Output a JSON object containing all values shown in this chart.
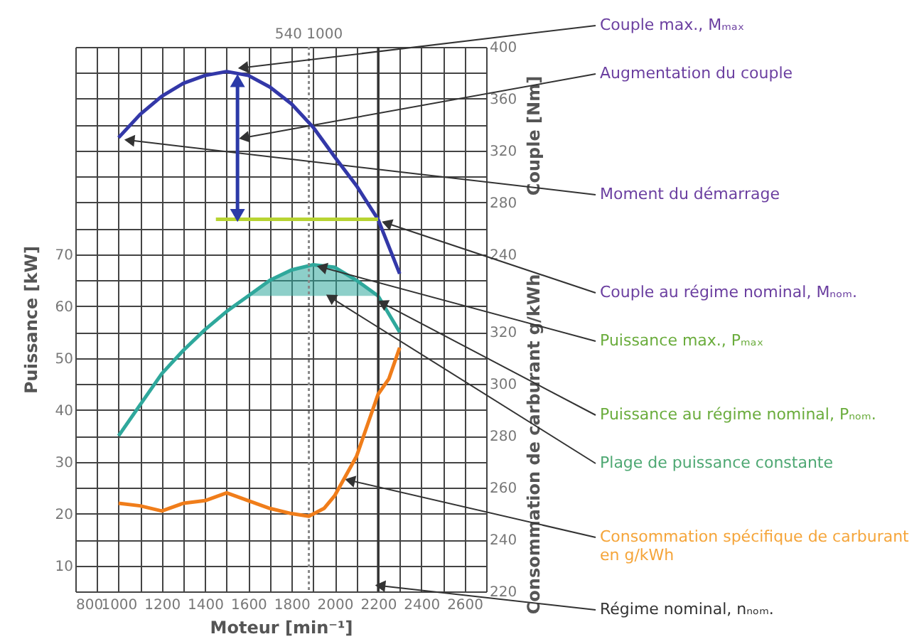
{
  "chart_data": {
    "type": "line",
    "xlabel": "Moteur [min⁻¹]",
    "ylabel": "Puissance [kW]",
    "y2label": "Couple [Nm]",
    "y3label": "Consommation de carburant g/kWh",
    "xlim": [
      800,
      2700
    ],
    "xticks": [
      800,
      {
        "value": 900,
        "label": null
      },
      1000,
      {
        "value": 1100,
        "label": null
      },
      1200,
      {
        "value": 1300,
        "label": null
      },
      1400,
      {
        "value": 1500,
        "label": null
      },
      1600,
      {
        "value": 1700,
        "label": null
      },
      1800,
      {
        "value": 1900,
        "label": null
      },
      2000,
      {
        "value": 2100,
        "label": null
      },
      2200,
      {
        "value": 2300,
        "label": null
      },
      2400,
      {
        "value": 2500,
        "label": null
      },
      2600,
      {
        "value": 2700,
        "label": null
      }
    ],
    "ylim": [
      5,
      110
    ],
    "yticks": [
      {
        "value": 5,
        "label": null
      },
      10,
      {
        "value": 15,
        "label": null
      },
      20,
      {
        "value": 25,
        "label": null
      },
      30,
      {
        "value": 35,
        "label": null
      },
      40,
      {
        "value": 45,
        "label": null
      },
      50,
      {
        "value": 55,
        "label": null
      },
      60,
      {
        "value": 65,
        "label": null
      },
      70,
      {
        "value": 75,
        "label": null
      },
      {
        "value": 80,
        "label": null
      },
      {
        "value": 85,
        "label": null
      },
      {
        "value": 90,
        "label": null
      },
      {
        "value": 95,
        "label": null
      },
      {
        "value": 100,
        "label": null
      },
      {
        "value": 105,
        "label": null
      },
      {
        "value": 110,
        "label": null
      }
    ],
    "y2lim": [
      -20,
      400
    ],
    "y2ticks": [
      240,
      280,
      320,
      360,
      400
    ],
    "y3lim": [
      220,
      430
    ],
    "y3ticks": [
      220,
      240,
      260,
      280,
      300,
      320
    ],
    "grid": true,
    "series": [
      {
        "axis": "y2",
        "color": "#3338a8",
        "x": [
          1000,
          1100,
          1200,
          1300,
          1400,
          1500,
          1600,
          1700,
          1800,
          1900,
          2000,
          2100,
          2200,
          2300
        ],
        "values": [
          330,
          348,
          362,
          372,
          378,
          381,
          378,
          369,
          356,
          338,
          315,
          293,
          267,
          225
        ]
      },
      {
        "axis": "y2",
        "color": "#b8d432",
        "x": [
          1450,
          2200
        ],
        "values": [
          267,
          267
        ]
      },
      {
        "axis": "y2",
        "color": "#2b3aa8",
        "marker": "triangle",
        "x": [
          1550,
          1550
        ],
        "values": [
          374,
          270
        ]
      },
      {
        "color": "#2fa89c",
        "x": [
          1000,
          1100,
          1200,
          1300,
          1400,
          1500,
          1600,
          1700,
          1800,
          1900,
          2000,
          2100,
          2200,
          2300
        ],
        "values": [
          35,
          41,
          47,
          51.5,
          55.5,
          59,
          62,
          65,
          67,
          68,
          67.5,
          65,
          62,
          55
        ],
        "lower": [
          null,
          null,
          null,
          null,
          null,
          null,
          62,
          62,
          62,
          62,
          62,
          62,
          62,
          null
        ],
        "upper": [
          null,
          null,
          null,
          null,
          null,
          null,
          62,
          65,
          67,
          68,
          67.5,
          65,
          62,
          null
        ]
      },
      {
        "axis": "y3",
        "color": "#f07d1a",
        "x": [
          1000,
          1100,
          1200,
          1300,
          1400,
          1500,
          1600,
          1700,
          1800,
          1880,
          1950,
          2000,
          2100,
          2200,
          2250,
          2300
        ],
        "values": [
          254,
          253,
          251,
          254,
          255,
          258,
          255,
          252,
          250,
          249,
          252,
          257,
          272,
          296,
          302,
          314
        ]
      }
    ],
    "ref_lines": [
      {
        "axis": "x",
        "value": 1880,
        "line_style": "dotted",
        "color": "#888888"
      },
      {
        "axis": "x",
        "value": 2200,
        "color": "#333333"
      }
    ],
    "annotations": [
      "540 1000",
      {
        "text": "Couple max., Mₘₐₓ",
        "x": 1576,
        "y": 106
      },
      {
        "text": "Augmentation du couple",
        "x": 1580,
        "y": 92.5
      },
      {
        "text": "Moment du démarrage",
        "x": 1050,
        "y": 92
      },
      {
        "text": "Couple au régime nominal, Mₙₒₘ.",
        "x": 2240,
        "y": 76
      },
      {
        "text": "Puissance max., Pₘₐₓ",
        "x": 1940,
        "y": 67.5
      },
      {
        "text": "Puissance au régime nominal, Pₙₒₘ.",
        "x": 2220,
        "y": 60.6
      },
      {
        "text": "Plage de puissance constante",
        "x": 1980,
        "y": 61.7
      },
      {
        "text": "Consommation spécifique de carburant\nen g/kWh",
        "x": 2070,
        "y": 26.4
      },
      {
        "text": "Régime nominal, nₙₒₘ.",
        "x": 2210,
        "y": 6.1
      }
    ]
  }
}
